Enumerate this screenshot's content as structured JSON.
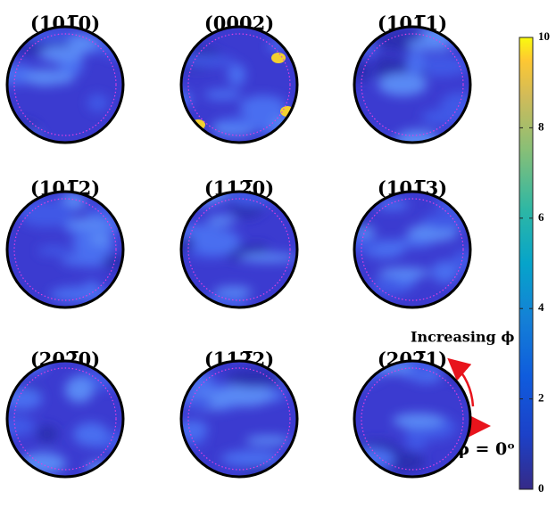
{
  "panels": [
    {
      "label": "(101̅0)"
    },
    {
      "label": "(0002)"
    },
    {
      "label": "(101̅1)"
    },
    {
      "label": "(101̅2)"
    },
    {
      "label": "(112̅0)"
    },
    {
      "label": "(101̅3)"
    },
    {
      "label": "(202̅0)"
    },
    {
      "label": "(112̅2)"
    },
    {
      "label": "(202̅1)"
    }
  ],
  "colorbar": {
    "lim": [
      0,
      10
    ],
    "ticks": [
      0,
      2,
      4,
      6,
      8,
      10
    ]
  },
  "annotations": {
    "increasing": "Increasing ϕ",
    "zero": "ϕ = 0ᵒ"
  }
}
